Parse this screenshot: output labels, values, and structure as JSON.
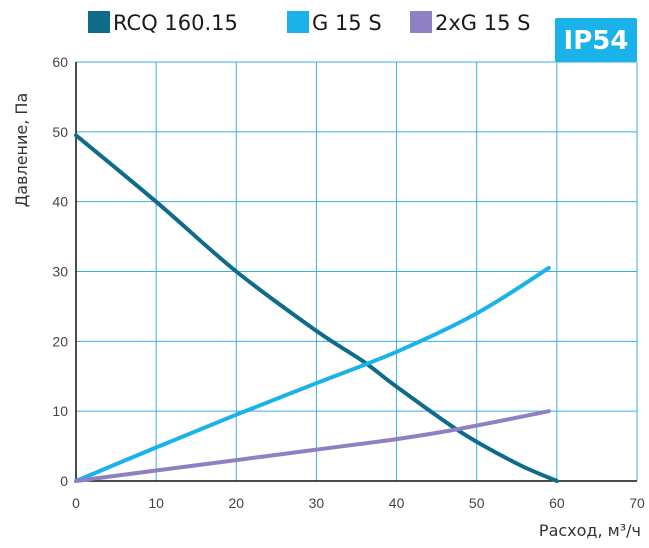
{
  "chart_data": {
    "type": "line",
    "title": "",
    "xlabel": "Расход, м³/ч",
    "ylabel": "Давление, Па",
    "xlim": [
      0,
      70
    ],
    "ylim": [
      0,
      60
    ],
    "x_ticks": [
      "0",
      "10",
      "20",
      "30",
      "40",
      "50",
      "60",
      "70"
    ],
    "y_ticks": [
      "0",
      "10",
      "20",
      "30",
      "40",
      "50",
      "60"
    ],
    "grid": true,
    "legend_position": "top",
    "badge": "IP54",
    "badge_color": "#1ab2e8",
    "series": [
      {
        "name": "RCQ 160.15",
        "color": "#0f6b8a",
        "x": [
          0,
          10,
          20,
          30,
          36,
          40,
          48,
          55,
          60
        ],
        "y": [
          49.5,
          40,
          30,
          21.5,
          17,
          13.5,
          7,
          2.5,
          0
        ]
      },
      {
        "name": "G 15 S",
        "color": "#1ab2e8",
        "x": [
          0,
          10,
          20,
          30,
          40,
          50,
          59
        ],
        "y": [
          0,
          4.8,
          9.5,
          14,
          18.5,
          24,
          30.5
        ]
      },
      {
        "name": "2xG 15 S",
        "color": "#8f80c4",
        "x": [
          0,
          10,
          20,
          30,
          40,
          48,
          59
        ],
        "y": [
          0,
          1.5,
          3,
          4.5,
          6,
          7.5,
          10
        ]
      }
    ]
  }
}
